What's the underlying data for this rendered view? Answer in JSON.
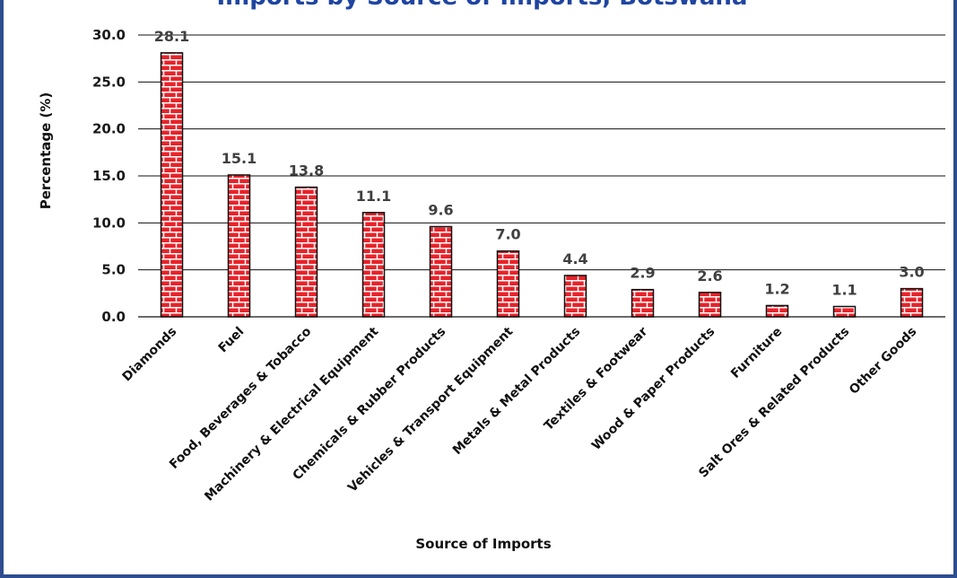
{
  "page": {
    "title_fragment": "Imports by Source of Imports, Botswana"
  },
  "colors": {
    "frame": "#2e4d8f",
    "title": "#1f45a0",
    "brick": "#e8232a",
    "mortar": "#ffffff",
    "bar_outline": "#111111",
    "grid": "#111111"
  },
  "chart_data": {
    "type": "bar",
    "title": "",
    "xlabel": "Source of Imports",
    "ylabel": "Percentage (%)",
    "ylim": [
      0,
      30
    ],
    "yticks": [
      "0.0",
      "5.0",
      "10.0",
      "15.0",
      "20.0",
      "25.0",
      "30.0"
    ],
    "grid": true,
    "legend": "none",
    "categories": [
      "Diamonds",
      "Fuel",
      "Food, Beverages & Tobacco",
      "Machinery & Electrical Equipment",
      "Chemicals & Rubber Products",
      "Vehicles & Transport Equipment",
      "Metals & Metal Products",
      "Textiles & Footwear",
      "Wood & Paper Products",
      "Furniture",
      "Salt Ores & Related Products",
      "Other Goods"
    ],
    "values": [
      28.1,
      15.1,
      13.8,
      11.1,
      9.6,
      7.0,
      4.4,
      2.9,
      2.6,
      1.2,
      1.1,
      3.0
    ],
    "data_labels": [
      "28.1",
      "15.1",
      "13.8",
      "11.1",
      "9.6",
      "7.0",
      "4.4",
      "2.9",
      "2.6",
      "1.2",
      "1.1",
      "3.0"
    ],
    "bar_pattern": "brick"
  }
}
